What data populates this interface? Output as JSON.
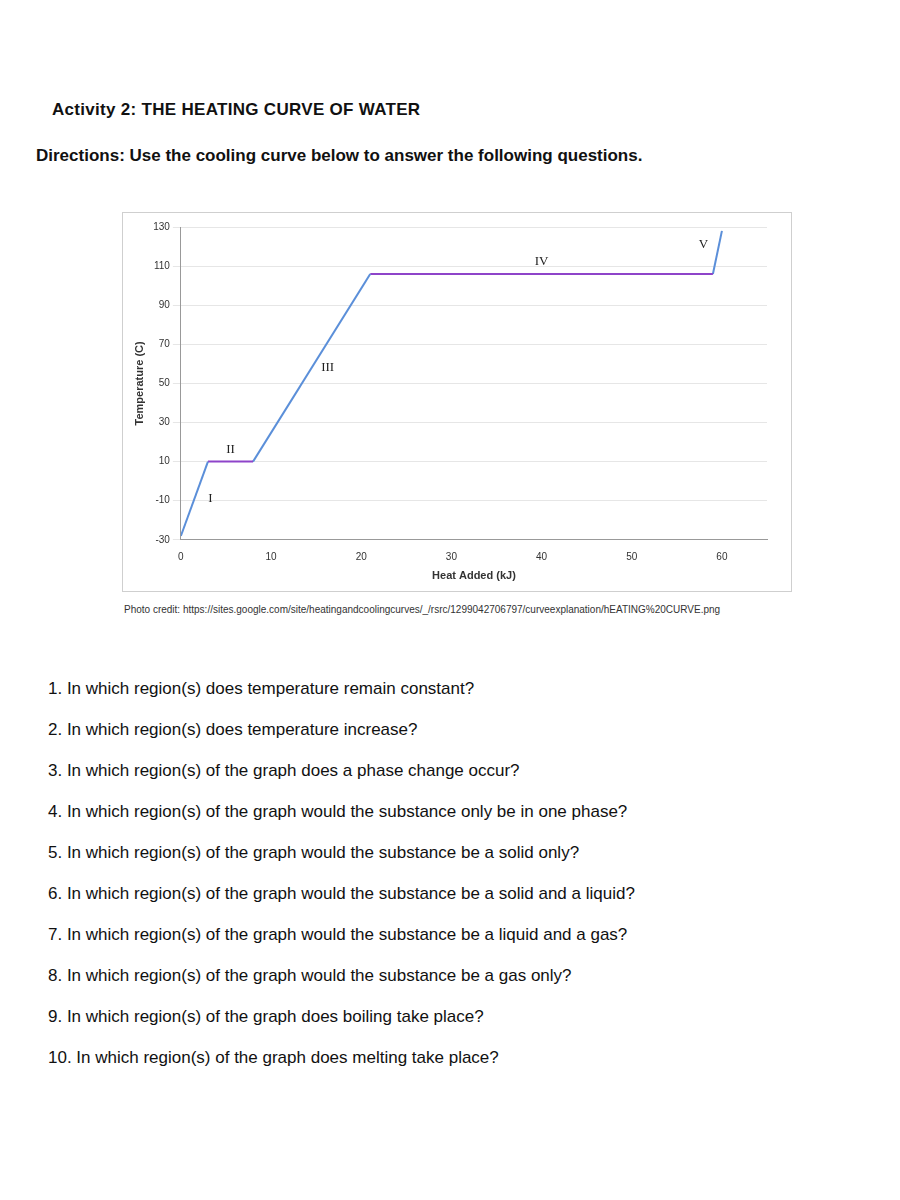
{
  "header": {
    "title": "Activity 2: THE HEATING CURVE OF WATER",
    "directions": "Directions: Use the cooling curve below to answer the following questions."
  },
  "chart_data": {
    "type": "line",
    "x_label": "Heat Added (kJ)",
    "y_label": "Temperature (C)",
    "xlim": [
      0,
      65
    ],
    "xticks": [
      0,
      10,
      20,
      30,
      40,
      50,
      60
    ],
    "ylim": [
      -30,
      130
    ],
    "yticks": [
      -30,
      -10,
      10,
      30,
      50,
      70,
      90,
      110,
      130
    ],
    "grid": true,
    "series": [
      {
        "name": "I",
        "color": "#5b8fd9",
        "x": [
          0,
          3
        ],
        "values": [
          -28,
          10
        ]
      },
      {
        "name": "II",
        "color": "#8e44c9",
        "x": [
          3,
          8
        ],
        "values": [
          10,
          10
        ]
      },
      {
        "name": "III",
        "color": "#5b8fd9",
        "x": [
          8,
          21
        ],
        "values": [
          10,
          106
        ]
      },
      {
        "name": "IV",
        "color": "#8e44c9",
        "x": [
          21,
          59
        ],
        "values": [
          106,
          106
        ]
      },
      {
        "name": "V",
        "color": "#5b8fd9",
        "x": [
          59,
          60
        ],
        "values": [
          106,
          128
        ]
      }
    ]
  },
  "credit": "Photo credit: https://sites.google.com/site/heatingandcoolingcurves/_/rsrc/1299042706797/curveexplanation/hEATING%20CURVE.png",
  "questions": [
    "1. In which region(s) does temperature remain constant?",
    "2. In which region(s) does temperature increase?",
    "3. In which region(s) of the graph does a phase change occur?",
    "4. In which region(s) of the graph would the substance only be in one phase?",
    "5. In which region(s) of the graph would the substance be a solid only?",
    "6. In which region(s) of the graph would the substance be a solid and a liquid?",
    "7. In which region(s) of the graph would the substance be a liquid and a gas?",
    "8. In which region(s) of the graph would the substance be a gas only?",
    "9. In which region(s) of the graph does boiling take place?",
    "10. In which region(s) of the graph does melting take place?"
  ]
}
